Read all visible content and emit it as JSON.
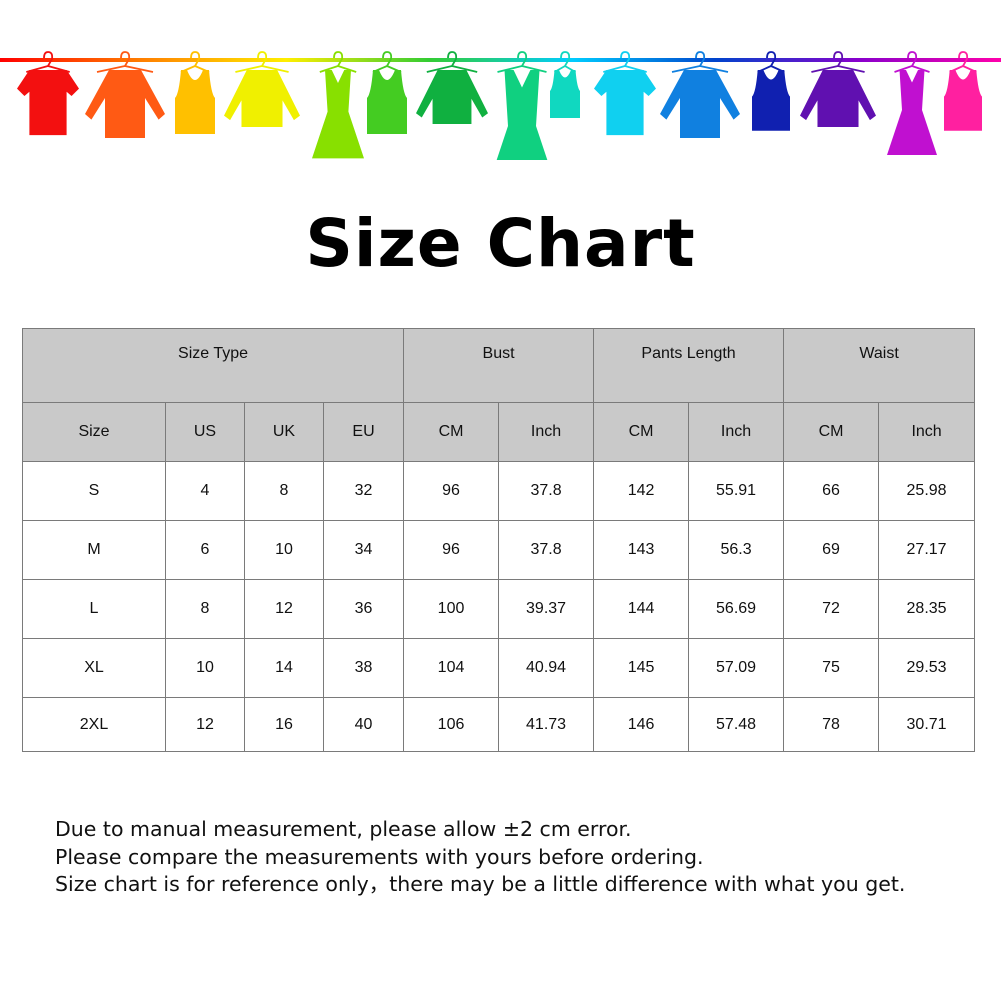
{
  "banner": {
    "rope_gradient": [
      "#ff0000",
      "#ff8000",
      "#ffee00",
      "#33cc33",
      "#00ccff",
      "#0044cc",
      "#8800cc",
      "#ff00aa"
    ],
    "clothes": [
      {
        "icon": "tshirt-icon",
        "color": "#f31010"
      },
      {
        "icon": "shirt-icon",
        "color": "#ff5a14"
      },
      {
        "icon": "tank-top-icon",
        "color": "#ffc000"
      },
      {
        "icon": "sweater-icon",
        "color": "#f0f000"
      },
      {
        "icon": "dress-icon",
        "color": "#88e000"
      },
      {
        "icon": "tank-top-icon",
        "color": "#44cc22"
      },
      {
        "icon": "sweater-icon",
        "color": "#10b040"
      },
      {
        "icon": "dress-icon",
        "color": "#10d080"
      },
      {
        "icon": "tank-top-icon",
        "color": "#10d8c0"
      },
      {
        "icon": "tshirt-icon",
        "color": "#10d0f0"
      },
      {
        "icon": "shirt-icon",
        "color": "#1080e0"
      },
      {
        "icon": "tank-top-icon",
        "color": "#1020b0"
      },
      {
        "icon": "sweater-icon",
        "color": "#6010b0"
      },
      {
        "icon": "dress-icon",
        "color": "#c010d0"
      },
      {
        "icon": "tank-top-icon",
        "color": "#ff20a0"
      }
    ]
  },
  "title": "Size Chart",
  "table": {
    "group_headers": [
      "Size Type",
      "Bust",
      "Pants Length",
      "Waist"
    ],
    "sub_headers": [
      "Size",
      "US",
      "UK",
      "EU",
      "CM",
      "Inch",
      "CM",
      "Inch",
      "CM",
      "Inch"
    ],
    "header_bg": "#c9c9c9",
    "rows": [
      [
        "S",
        "4",
        "8",
        "32",
        "96",
        "37.8",
        "142",
        "55.91",
        "66",
        "25.98"
      ],
      [
        "M",
        "6",
        "10",
        "34",
        "96",
        "37.8",
        "143",
        "56.3",
        "69",
        "27.17"
      ],
      [
        "L",
        "8",
        "12",
        "36",
        "100",
        "39.37",
        "144",
        "56.69",
        "72",
        "28.35"
      ],
      [
        "XL",
        "10",
        "14",
        "38",
        "104",
        "40.94",
        "145",
        "57.09",
        "75",
        "29.53"
      ],
      [
        "2XL",
        "12",
        "16",
        "40",
        "106",
        "41.73",
        "146",
        "57.48",
        "78",
        "30.71"
      ]
    ]
  },
  "notes": [
    "Due to manual measurement, please allow ±2 cm error.",
    "Please compare the measurements with yours before ordering.",
    "Size chart is for reference only，there may be a little difference with what you get."
  ]
}
